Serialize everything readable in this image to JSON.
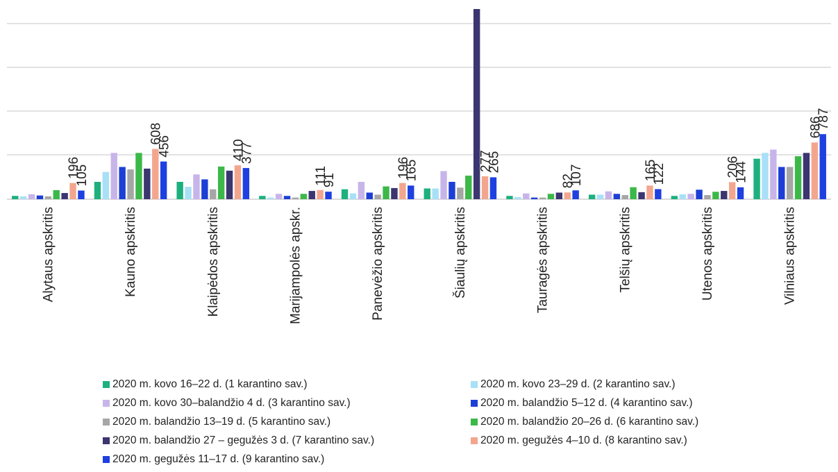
{
  "chart_data": {
    "type": "bar",
    "title": "",
    "xlabel": "",
    "ylabel": "",
    "ylim": [
      0,
      2300
    ],
    "grid": true,
    "legend_position": "bottom",
    "categories": [
      "Alytaus apskritis",
      "Kauno apskritis",
      "Klaipėdos apskritis",
      "Marijampolės apskr.",
      "Panevėžio apskritis",
      "Šiaulių apskritis",
      "Tauragės apskritis",
      "Telšių apskritis",
      "Utenos apskritis",
      "Vilniaus apskritis"
    ],
    "series": [
      {
        "name": "2020 m. kovo 16–22 d. (1 karantino sav.)",
        "color": "#1db07e",
        "values": [
          40,
          210,
          210,
          40,
          120,
          130,
          40,
          55,
          40,
          490
        ]
      },
      {
        "name": "2020 m. kovo 23–29 d. (2 karantino sav.)",
        "color": "#a8e0f7",
        "values": [
          35,
          330,
          150,
          20,
          70,
          130,
          25,
          55,
          60,
          560
        ]
      },
      {
        "name": "2020 m. kovo 30–balandžio 4 d. (3 karantino sav.)",
        "color": "#c7b5ea",
        "values": [
          60,
          560,
          300,
          65,
          210,
          340,
          70,
          95,
          65,
          600
        ]
      },
      {
        "name": "2020 m. balandžio 5–12 d. (4 karantino sav.)",
        "color": "#1d3fd6",
        "values": [
          45,
          390,
          240,
          40,
          80,
          210,
          20,
          65,
          115,
          390
        ]
      },
      {
        "name": "2020 m. balandžio 13–19 d. (5 karantino sav.)",
        "color": "#a6a6a6",
        "values": [
          35,
          360,
          120,
          20,
          55,
          140,
          20,
          50,
          50,
          390
        ]
      },
      {
        "name": "2020 m. balandžio 20–26 d. (6 karantino sav.)",
        "color": "#3cb849",
        "values": [
          110,
          560,
          395,
          65,
          155,
          285,
          65,
          145,
          90,
          520
        ]
      },
      {
        "name": "2020 m. balandžio 27 – gegužės 3 d. (7 karantino sav.)",
        "color": "#3b3570",
        "values": [
          75,
          370,
          345,
          100,
          135,
          2300,
          80,
          85,
          100,
          560
        ]
      },
      {
        "name": "2020 m. gegužės 4–10 d. (8 karantino sav.)",
        "color": "#f3a68e",
        "values": [
          196,
          608,
          410,
          111,
          196,
          277,
          82,
          165,
          206,
          686
        ]
      },
      {
        "name": "2020 m. gegužės 11–17 d. (9 karantino sav.)",
        "color": "#1e40e0",
        "values": [
          105,
          456,
          377,
          91,
          165,
          265,
          107,
          122,
          144,
          787
        ]
      }
    ],
    "data_labels": [
      {
        "category": "Alytaus apskritis",
        "labels": [
          "196",
          "105"
        ]
      },
      {
        "category": "Kauno apskritis",
        "labels": [
          "608",
          "456"
        ]
      },
      {
        "category": "Klaipėdos apskritis",
        "labels": [
          "410",
          "377"
        ]
      },
      {
        "category": "Marijampolės apskr.",
        "labels": [
          "111",
          "91"
        ]
      },
      {
        "category": "Panevėžio apskritis",
        "labels": [
          "196",
          "165"
        ]
      },
      {
        "category": "Šiaulių apskritis",
        "labels": [
          "277",
          "265"
        ]
      },
      {
        "category": "Tauragės apskritis",
        "labels": [
          "82",
          "107"
        ]
      },
      {
        "category": "Telšių apskritis",
        "labels": [
          "165",
          "122"
        ]
      },
      {
        "category": "Utenos apskritis",
        "labels": [
          "206",
          "144"
        ]
      },
      {
        "category": "Vilniaus apskritis",
        "labels": [
          "686",
          "787"
        ]
      }
    ]
  }
}
